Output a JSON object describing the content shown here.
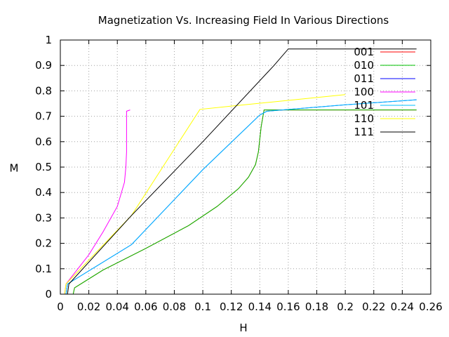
{
  "chart_data": {
    "type": "line",
    "title": "Magnetization Vs. Increasing Field In Various Directions",
    "xlabel": "H",
    "ylabel": "M",
    "xlim": [
      0,
      0.26
    ],
    "ylim": [
      0,
      1
    ],
    "xticks": [
      "0",
      "0.02",
      "0.04",
      "0.06",
      "0.08",
      "0.1",
      "0.12",
      "0.14",
      "0.16",
      "0.18",
      "0.2",
      "0.22",
      "0.24",
      "0.26"
    ],
    "yticks": [
      "0",
      "0.1",
      "0.2",
      "0.3",
      "0.4",
      "0.5",
      "0.6",
      "0.7",
      "0.8",
      "0.9",
      "1"
    ],
    "grid": true,
    "legend_position": "top-right",
    "series": [
      {
        "name": "001",
        "color": "#ff0000",
        "points": [
          [
            0,
            0
          ],
          [
            0.009,
            0
          ],
          [
            0.01,
            0.025
          ],
          [
            0.03,
            0.095
          ],
          [
            0.06,
            0.18
          ],
          [
            0.09,
            0.27
          ],
          [
            0.11,
            0.345
          ],
          [
            0.125,
            0.415
          ],
          [
            0.132,
            0.46
          ],
          [
            0.137,
            0.51
          ],
          [
            0.139,
            0.56
          ],
          [
            0.141,
            0.66
          ],
          [
            0.143,
            0.725
          ],
          [
            0.15,
            0.725
          ],
          [
            0.2,
            0.725
          ],
          [
            0.25,
            0.725
          ]
        ]
      },
      {
        "name": "010",
        "color": "#00c000",
        "points": [
          [
            0,
            0
          ],
          [
            0.009,
            0
          ],
          [
            0.01,
            0.025
          ],
          [
            0.03,
            0.095
          ],
          [
            0.06,
            0.18
          ],
          [
            0.09,
            0.27
          ],
          [
            0.11,
            0.345
          ],
          [
            0.125,
            0.415
          ],
          [
            0.132,
            0.46
          ],
          [
            0.137,
            0.51
          ],
          [
            0.139,
            0.56
          ],
          [
            0.141,
            0.66
          ],
          [
            0.143,
            0.725
          ],
          [
            0.15,
            0.725
          ],
          [
            0.2,
            0.725
          ],
          [
            0.25,
            0.725
          ]
        ]
      },
      {
        "name": "011",
        "color": "#0000ff",
        "points": [
          [
            0,
            0
          ],
          [
            0.004,
            0
          ],
          [
            0.005,
            0.04
          ],
          [
            0.05,
            0.195
          ],
          [
            0.1,
            0.49
          ],
          [
            0.14,
            0.705
          ],
          [
            0.145,
            0.72
          ],
          [
            0.2,
            0.745
          ],
          [
            0.25,
            0.765
          ]
        ]
      },
      {
        "name": "100",
        "color": "#ff00ff",
        "points": [
          [
            0,
            0
          ],
          [
            0.003,
            0
          ],
          [
            0.004,
            0.04
          ],
          [
            0.02,
            0.155
          ],
          [
            0.03,
            0.245
          ],
          [
            0.04,
            0.345
          ],
          [
            0.045,
            0.44
          ],
          [
            0.046,
            0.5
          ],
          [
            0.0465,
            0.56
          ],
          [
            0.0465,
            0.72
          ],
          [
            0.049,
            0.725
          ]
        ]
      },
      {
        "name": "101",
        "color": "#00c0ff",
        "points": [
          [
            0,
            0
          ],
          [
            0.004,
            0
          ],
          [
            0.005,
            0.04
          ],
          [
            0.05,
            0.195
          ],
          [
            0.1,
            0.49
          ],
          [
            0.14,
            0.705
          ],
          [
            0.145,
            0.72
          ],
          [
            0.2,
            0.745
          ],
          [
            0.25,
            0.765
          ]
        ]
      },
      {
        "name": "110",
        "color": "#ffff00",
        "points": [
          [
            0,
            0
          ],
          [
            0.003,
            0
          ],
          [
            0.004,
            0.04
          ],
          [
            0.05,
            0.31
          ],
          [
            0.098,
            0.727
          ],
          [
            0.12,
            0.74
          ],
          [
            0.2,
            0.785
          ]
        ]
      },
      {
        "name": "111",
        "color": "#000000",
        "points": [
          [
            0,
            0
          ],
          [
            0.005,
            0
          ],
          [
            0.006,
            0.04
          ],
          [
            0.05,
            0.31
          ],
          [
            0.1,
            0.6
          ],
          [
            0.15,
            0.9
          ],
          [
            0.16,
            0.965
          ],
          [
            0.25,
            0.965
          ]
        ]
      }
    ]
  }
}
